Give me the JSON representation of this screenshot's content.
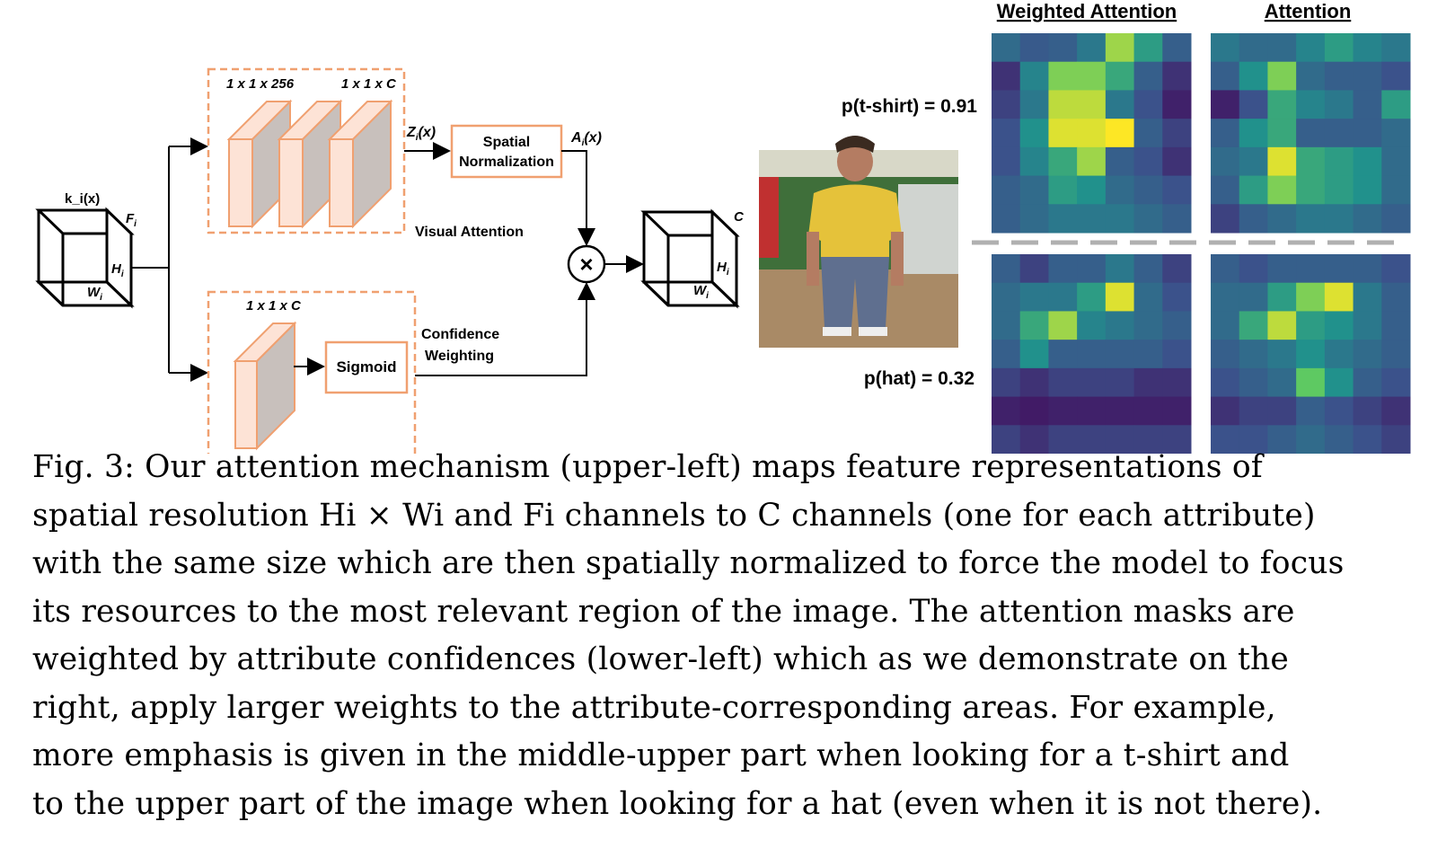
{
  "diagram": {
    "input_label": "k_i(x)",
    "input_F": "F",
    "input_H": "H",
    "input_W": "W",
    "sub_i": "i",
    "top_branch_dim1": "1 x 1 x 256",
    "top_branch_dim2": "1 x 1 x C",
    "z_label": "Z",
    "z_args": "(x)",
    "spatial_norm_line1": "Spatial",
    "spatial_norm_line2": "Normalization",
    "a_label": "A",
    "a_args": "(x)",
    "visual_attention": "Visual Attention",
    "bottom_branch_dim": "1 x 1 x C",
    "sigmoid": "Sigmoid",
    "confidence_line1": "Confidence",
    "confidence_line2": "Weighting",
    "multiply_symbol": "×",
    "output_C": "C",
    "output_H": "H",
    "output_W": "W",
    "colors": {
      "block_fill": "#fde3d6",
      "block_side": "#c8c0bc",
      "block_stroke": "#f0a070",
      "dashed": "#f0a070"
    }
  },
  "right_panel": {
    "header_weighted": "Weighted Attention",
    "header_attention": "Attention",
    "prob_tshirt": "p(t-shirt) = 0.91",
    "prob_hat": "p(hat) = 0.32",
    "heatmaps": {
      "tshirt_weighted": [
        [
          0.35,
          0.28,
          0.3,
          0.4,
          0.85,
          0.55,
          0.3
        ],
        [
          0.15,
          0.45,
          0.8,
          0.8,
          0.6,
          0.3,
          0.15
        ],
        [
          0.2,
          0.4,
          0.9,
          0.9,
          0.4,
          0.25,
          0.1
        ],
        [
          0.25,
          0.5,
          0.95,
          0.95,
          1.0,
          0.3,
          0.2
        ],
        [
          0.25,
          0.45,
          0.6,
          0.85,
          0.3,
          0.25,
          0.15
        ],
        [
          0.3,
          0.35,
          0.55,
          0.5,
          0.35,
          0.3,
          0.25
        ],
        [
          0.3,
          0.35,
          0.4,
          0.4,
          0.4,
          0.35,
          0.3
        ]
      ],
      "tshirt_attention": [
        [
          0.4,
          0.35,
          0.35,
          0.45,
          0.55,
          0.45,
          0.4
        ],
        [
          0.3,
          0.5,
          0.8,
          0.35,
          0.3,
          0.3,
          0.25
        ],
        [
          0.1,
          0.25,
          0.6,
          0.45,
          0.4,
          0.3,
          0.55
        ],
        [
          0.3,
          0.5,
          0.6,
          0.3,
          0.3,
          0.3,
          0.35
        ],
        [
          0.35,
          0.4,
          0.95,
          0.6,
          0.55,
          0.5,
          0.35
        ],
        [
          0.3,
          0.55,
          0.8,
          0.6,
          0.55,
          0.5,
          0.35
        ],
        [
          0.2,
          0.3,
          0.35,
          0.4,
          0.4,
          0.35,
          0.3
        ]
      ],
      "hat_weighted": [
        [
          0.3,
          0.2,
          0.3,
          0.3,
          0.4,
          0.3,
          0.2
        ],
        [
          0.35,
          0.4,
          0.4,
          0.55,
          0.95,
          0.35,
          0.25
        ],
        [
          0.35,
          0.6,
          0.85,
          0.45,
          0.4,
          0.35,
          0.3
        ],
        [
          0.3,
          0.5,
          0.3,
          0.3,
          0.3,
          0.3,
          0.25
        ],
        [
          0.2,
          0.15,
          0.2,
          0.2,
          0.2,
          0.15,
          0.15
        ],
        [
          0.1,
          0.08,
          0.1,
          0.1,
          0.1,
          0.1,
          0.1
        ],
        [
          0.2,
          0.15,
          0.2,
          0.2,
          0.2,
          0.2,
          0.2
        ]
      ],
      "hat_attention": [
        [
          0.3,
          0.25,
          0.3,
          0.3,
          0.3,
          0.3,
          0.25
        ],
        [
          0.35,
          0.35,
          0.55,
          0.8,
          0.95,
          0.4,
          0.3
        ],
        [
          0.35,
          0.6,
          0.9,
          0.55,
          0.5,
          0.4,
          0.3
        ],
        [
          0.3,
          0.35,
          0.4,
          0.5,
          0.4,
          0.35,
          0.3
        ],
        [
          0.25,
          0.3,
          0.35,
          0.75,
          0.5,
          0.3,
          0.25
        ],
        [
          0.15,
          0.2,
          0.2,
          0.3,
          0.25,
          0.2,
          0.15
        ],
        [
          0.25,
          0.25,
          0.3,
          0.35,
          0.3,
          0.25,
          0.2
        ]
      ]
    }
  },
  "caption": {
    "lines": [
      "Fig. 3: Our attention mechanism (upper-left) maps feature representations of",
      "spatial resolution Hi × Wi and Fi channels to C channels (one for each attribute)",
      "with the same size which are then spatially normalized to force the model to focus",
      "its resources to the most relevant region of the image. The attention masks are",
      "weighted by attribute confidences (lower-left) which as we demonstrate on the",
      "right, apply larger weights to the attribute-corresponding areas. For example,",
      "more emphasis is given in the middle-upper part when looking for a t-shirt and",
      "to the upper part of the image when looking for a hat (even when it is not there)."
    ]
  }
}
